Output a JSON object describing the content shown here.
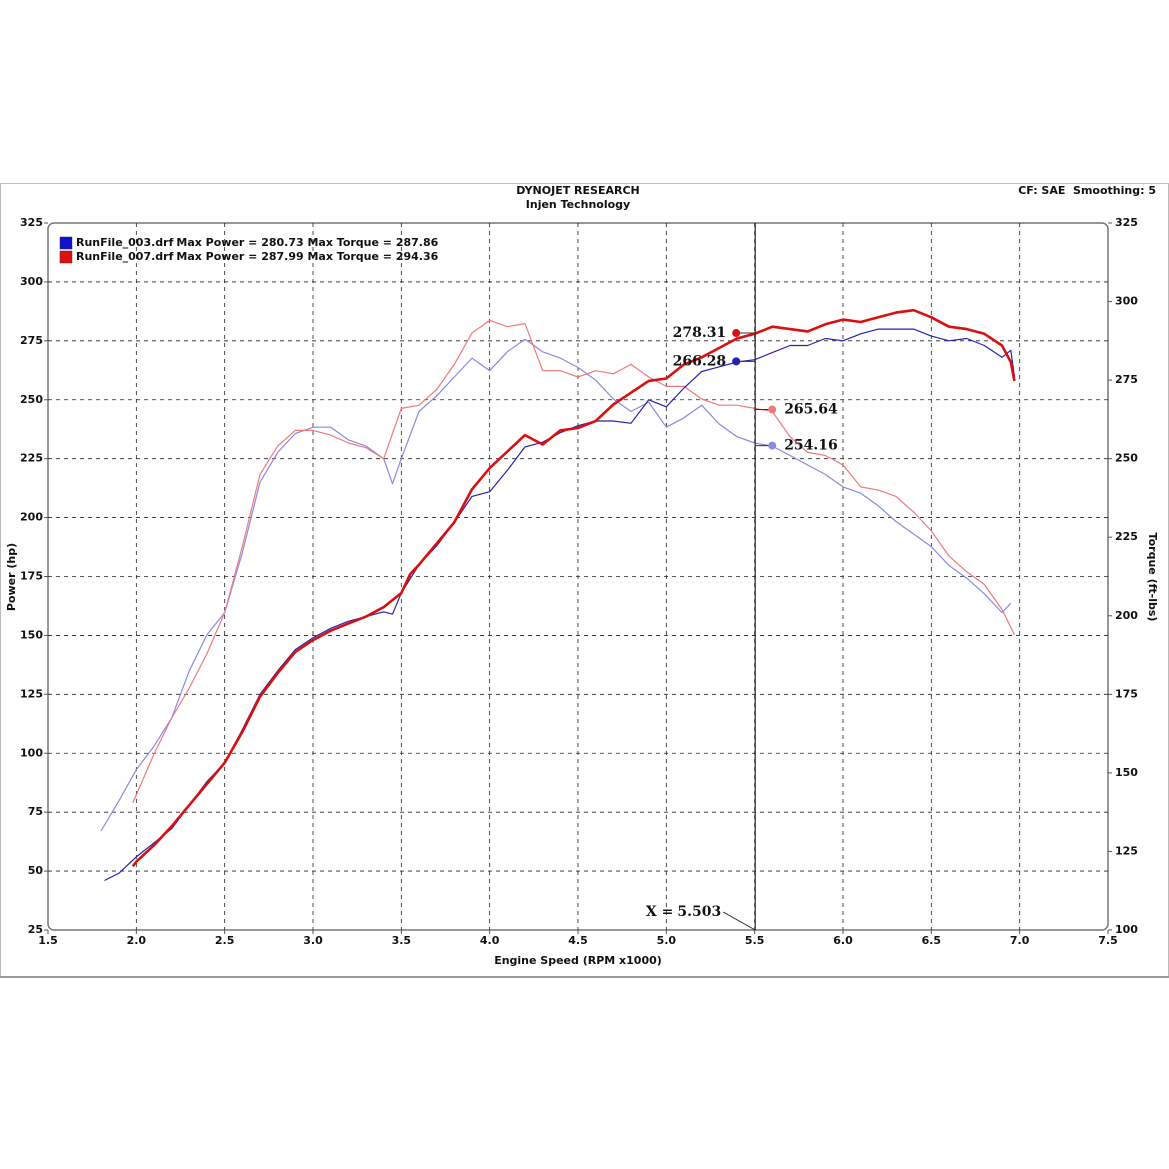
{
  "chart_data": {
    "type": "line",
    "title": "DYNOJET RESEARCH",
    "subtitle": "Injen Technology",
    "settings_text": "CF: SAE  Smoothing: 5",
    "x_label": "Engine Speed (RPM x1000)",
    "y_label": "Power (hp)",
    "y2_label": "Torque (ft-lbs)",
    "xlim": [
      1.5,
      7.5
    ],
    "xticks": [
      1.5,
      {
        "value": 2,
        "label": "2.0"
      },
      2.5,
      {
        "value": 3,
        "label": "3.0"
      },
      3.5,
      {
        "value": 4,
        "label": "4.0"
      },
      4.5,
      {
        "value": 5,
        "label": "5.0"
      },
      5.5,
      {
        "value": 6,
        "label": "6.0"
      },
      6.5,
      {
        "value": 7,
        "label": "7.0"
      },
      7.5
    ],
    "ylim": [
      25,
      325
    ],
    "yticks": [
      25,
      50,
      75,
      100,
      125,
      150,
      175,
      200,
      225,
      250,
      275,
      300,
      325
    ],
    "y2lim": [
      100,
      325
    ],
    "y2ticks": [
      100,
      125,
      150,
      175,
      200,
      225,
      250,
      275,
      300,
      325
    ],
    "grid": true,
    "cursor": {
      "label": "X =",
      "value": 5.503
    },
    "runs": [
      {
        "name": "RunFile_003.drf",
        "legend": "Max Power = 280.73 Max Torque = 287.86",
        "color": "#1010d0",
        "power": {
          "color": "#2323b0",
          "x": [
            1.82,
            1.9,
            2.0,
            2.1,
            2.2,
            2.3,
            2.4,
            2.5,
            2.6,
            2.7,
            2.8,
            2.9,
            3.0,
            3.1,
            3.2,
            3.3,
            3.4,
            3.45,
            3.5,
            3.6,
            3.7,
            3.8,
            3.9,
            4.0,
            4.1,
            4.2,
            4.3,
            4.4,
            4.5,
            4.6,
            4.7,
            4.8,
            4.9,
            5.0,
            5.1,
            5.2,
            5.3,
            5.4,
            5.5,
            5.6,
            5.7,
            5.8,
            5.9,
            6.0,
            6.1,
            6.2,
            6.3,
            6.4,
            6.5,
            6.6,
            6.7,
            6.8,
            6.9,
            6.95,
            6.97
          ],
          "values": [
            46,
            49,
            56,
            62,
            68,
            78,
            88,
            96,
            110,
            125,
            135,
            144,
            149,
            153,
            156,
            158,
            160,
            159,
            168,
            180,
            188,
            198,
            209,
            211,
            220,
            230,
            232,
            236,
            239,
            241,
            241,
            240,
            250,
            247,
            255,
            262,
            264,
            266,
            267,
            270,
            273,
            273,
            276,
            275,
            278,
            280,
            280,
            280,
            277,
            275,
            276,
            273,
            268,
            271,
            260
          ],
          "cursor_value": 266.28
        },
        "torque": {
          "color": "#8a8ae0",
          "axis": "y2",
          "x": [
            1.8,
            1.9,
            2.0,
            2.1,
            2.2,
            2.3,
            2.4,
            2.5,
            2.6,
            2.7,
            2.8,
            2.9,
            3.0,
            3.1,
            3.2,
            3.3,
            3.4,
            3.45,
            3.5,
            3.6,
            3.7,
            3.8,
            3.9,
            4.0,
            4.1,
            4.2,
            4.3,
            4.4,
            4.5,
            4.6,
            4.7,
            4.8,
            4.9,
            5.0,
            5.1,
            5.2,
            5.3,
            5.4,
            5.5,
            5.6,
            5.7,
            5.8,
            5.9,
            6.0,
            6.1,
            6.2,
            6.3,
            6.4,
            6.5,
            6.6,
            6.7,
            6.8,
            6.9,
            6.95
          ],
          "values": [
            131.5,
            141,
            151,
            158.5,
            167.5,
            182.5,
            194,
            201,
            220,
            242.5,
            252,
            258,
            260,
            260,
            256,
            254,
            250,
            242,
            250,
            265,
            270,
            276,
            282,
            278,
            284,
            288,
            284,
            282,
            279,
            275,
            269,
            265,
            268,
            260,
            263,
            267,
            261,
            257,
            255,
            254,
            251,
            248,
            245,
            241,
            239,
            235,
            230,
            226,
            222,
            216,
            212,
            207,
            201,
            204
          ],
          "cursor_value": 254.16
        }
      },
      {
        "name": "RunFile_007.drf",
        "legend": "Max Power = 287.99 Max Torque = 294.36",
        "color": "#e01010",
        "power": {
          "color": "#d81010",
          "x": [
            1.98,
            2.0,
            2.1,
            2.2,
            2.3,
            2.4,
            2.5,
            2.6,
            2.7,
            2.8,
            2.9,
            3.0,
            3.1,
            3.2,
            3.3,
            3.4,
            3.5,
            3.55,
            3.6,
            3.7,
            3.8,
            3.9,
            4.0,
            4.1,
            4.2,
            4.3,
            4.4,
            4.5,
            4.6,
            4.7,
            4.8,
            4.9,
            5.0,
            5.1,
            5.2,
            5.3,
            5.4,
            5.5,
            5.6,
            5.7,
            5.8,
            5.9,
            6.0,
            6.1,
            6.2,
            6.3,
            6.4,
            6.5,
            6.6,
            6.7,
            6.8,
            6.9,
            6.95,
            6.97
          ],
          "values": [
            52,
            54,
            61,
            69,
            78,
            87,
            96,
            109,
            124,
            134,
            143,
            148,
            152,
            155,
            158,
            162,
            168,
            176,
            180,
            189,
            198,
            212,
            221,
            228,
            235,
            231,
            237,
            238,
            241,
            248,
            253,
            258,
            259,
            265,
            268,
            272,
            276,
            278,
            281,
            280,
            279,
            282,
            284,
            283,
            285,
            287,
            288,
            285,
            281,
            280,
            278,
            273,
            266,
            258
          ],
          "cursor_value": 278.31
        },
        "torque": {
          "color": "#ef7a7a",
          "axis": "y2",
          "x": [
            1.98,
            2.0,
            2.1,
            2.2,
            2.3,
            2.4,
            2.5,
            2.6,
            2.7,
            2.8,
            2.9,
            3.0,
            3.1,
            3.2,
            3.3,
            3.4,
            3.5,
            3.6,
            3.7,
            3.8,
            3.9,
            4.0,
            4.1,
            4.2,
            4.3,
            4.4,
            4.5,
            4.6,
            4.7,
            4.8,
            4.9,
            5.0,
            5.1,
            5.2,
            5.3,
            5.4,
            5.5,
            5.6,
            5.7,
            5.8,
            5.9,
            6.0,
            6.1,
            6.2,
            6.3,
            6.4,
            6.5,
            6.6,
            6.7,
            6.8,
            6.9,
            6.97
          ],
          "values": [
            140.5,
            143,
            156,
            167.5,
            177,
            188,
            201,
            222,
            245,
            254,
            259,
            259,
            257.5,
            255,
            253.5,
            250,
            266,
            267,
            272,
            280,
            290,
            294,
            292,
            293,
            278,
            278,
            276,
            278,
            277,
            280,
            276,
            273,
            273,
            269,
            267,
            267,
            266,
            265,
            257,
            252,
            251,
            248,
            241,
            240,
            238,
            233,
            227,
            219,
            214,
            210,
            202,
            194
          ],
          "cursor_value": 265.64
        }
      }
    ]
  }
}
